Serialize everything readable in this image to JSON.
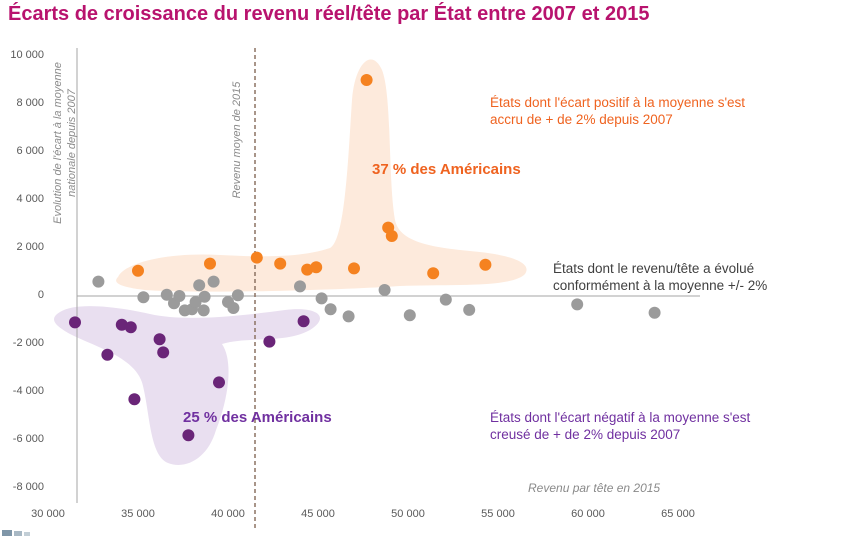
{
  "title": "Écarts de croissance du revenu réel/tête par État entre 2007 et 2015",
  "chart_data": {
    "type": "scatter",
    "x_axis": {
      "label": "Revenu par tête en 2015",
      "ticks": [
        "30 000",
        "35 000",
        "40 000",
        "45 000",
        "50 000",
        "55 000",
        "60 000",
        "65 000"
      ],
      "tick_values": [
        30000,
        35000,
        40000,
        45000,
        50000,
        55000,
        60000,
        65000
      ],
      "range": [
        30000,
        67000
      ]
    },
    "y_axis": {
      "label": "Evolution de l'écart à la moyenne nationale depuis 2007",
      "ticks": [
        "10 000",
        "8 000",
        "6 000",
        "4 000",
        "2 000",
        "0",
        "-2 000",
        "-4 000",
        "-6 000",
        "-8 000"
      ],
      "tick_values": [
        10000,
        8000,
        6000,
        4000,
        2000,
        0,
        -2000,
        -4000,
        -6000,
        -8000
      ],
      "range": [
        -8000,
        10000
      ]
    },
    "reference_line": {
      "label": "Revenu moyen de 2015",
      "x": 41500
    },
    "series": [
      {
        "name": "positif",
        "color": "#f58220",
        "label": "37 % des Américains",
        "points": [
          [
            35000,
            1050
          ],
          [
            39000,
            1350
          ],
          [
            41600,
            1600
          ],
          [
            42900,
            1350
          ],
          [
            44400,
            1100
          ],
          [
            44900,
            1200
          ],
          [
            47000,
            1150
          ],
          [
            47700,
            9000
          ],
          [
            48900,
            2850
          ],
          [
            49100,
            2500
          ],
          [
            51400,
            950
          ],
          [
            54300,
            1300
          ]
        ]
      },
      {
        "name": "conforme",
        "color": "#9b9b9b",
        "label": "",
        "points": [
          [
            32800,
            600
          ],
          [
            35300,
            -50
          ],
          [
            36600,
            50
          ],
          [
            37000,
            -300
          ],
          [
            37300,
            0
          ],
          [
            37600,
            -600
          ],
          [
            38000,
            -550
          ],
          [
            38200,
            -250
          ],
          [
            38400,
            450
          ],
          [
            38700,
            -30
          ],
          [
            38650,
            -600
          ],
          [
            39200,
            600
          ],
          [
            40000,
            -250
          ],
          [
            40550,
            30
          ],
          [
            40300,
            -500
          ],
          [
            44000,
            400
          ],
          [
            45200,
            -100
          ],
          [
            45700,
            -550
          ],
          [
            46700,
            -850
          ],
          [
            48700,
            250
          ],
          [
            50100,
            -800
          ],
          [
            52100,
            -150
          ],
          [
            53400,
            -580
          ],
          [
            59400,
            -350
          ],
          [
            63700,
            -700
          ]
        ]
      },
      {
        "name": "negatif",
        "color": "#6a2578",
        "label": "25 % des Américains",
        "points": [
          [
            31500,
            -1100
          ],
          [
            33300,
            -2450
          ],
          [
            34100,
            -1200
          ],
          [
            34600,
            -1300
          ],
          [
            34800,
            -4300
          ],
          [
            36200,
            -1800
          ],
          [
            36400,
            -2350
          ],
          [
            37800,
            -5800
          ],
          [
            39500,
            -3600
          ],
          [
            42300,
            -1900
          ],
          [
            44200,
            -1050
          ]
        ]
      }
    ],
    "annotations": {
      "positive": "États dont l'écart positif à la moyenne s'est accru de + de 2% depuis 2007",
      "conforme": "États dont le revenu/tête a évolué conformément à la moyenne +/- 2%",
      "negative": "États dont l'écart négatif à la moyenne s'est creusé de + de 2% depuis 2007"
    }
  }
}
